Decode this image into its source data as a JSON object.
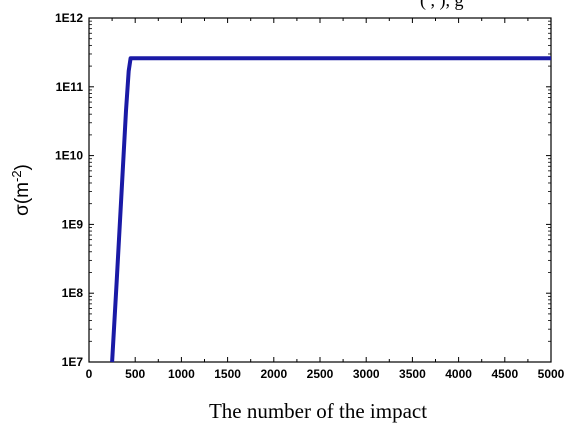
{
  "header_fragment": "( , ), g",
  "chart_data": {
    "type": "line",
    "title": "",
    "xlabel": "The number of the impact",
    "ylabel": {
      "base": "σ(m",
      "sup": "-2",
      "close": ")"
    },
    "xlim": [
      0,
      5000
    ],
    "ylim": [
      10000000,
      1000000000000
    ],
    "yscale": "log",
    "xticks": [
      0,
      500,
      1000,
      1500,
      2000,
      2500,
      3000,
      3500,
      4000,
      4500,
      5000
    ],
    "yticks": [
      {
        "value": 10000000,
        "label": "1E7"
      },
      {
        "value": 100000000,
        "label": "1E8"
      },
      {
        "value": 1000000000,
        "label": "1E9"
      },
      {
        "value": 10000000000,
        "label": "1E10"
      },
      {
        "value": 100000000000,
        "label": "1E11"
      },
      {
        "value": 1000000000000,
        "label": "1E12"
      }
    ],
    "grid": false,
    "series": [
      {
        "color": "#1a1aa6",
        "x": [
          250,
          300,
          350,
          400,
          430,
          450,
          500,
          1000,
          2000,
          3000,
          4000,
          5000
        ],
        "y": [
          10000000,
          150000000,
          2500000000,
          45000000000,
          170000000000,
          260000000000,
          260000000000,
          260000000000,
          260000000000,
          260000000000,
          260000000000,
          260000000000
        ]
      }
    ]
  }
}
